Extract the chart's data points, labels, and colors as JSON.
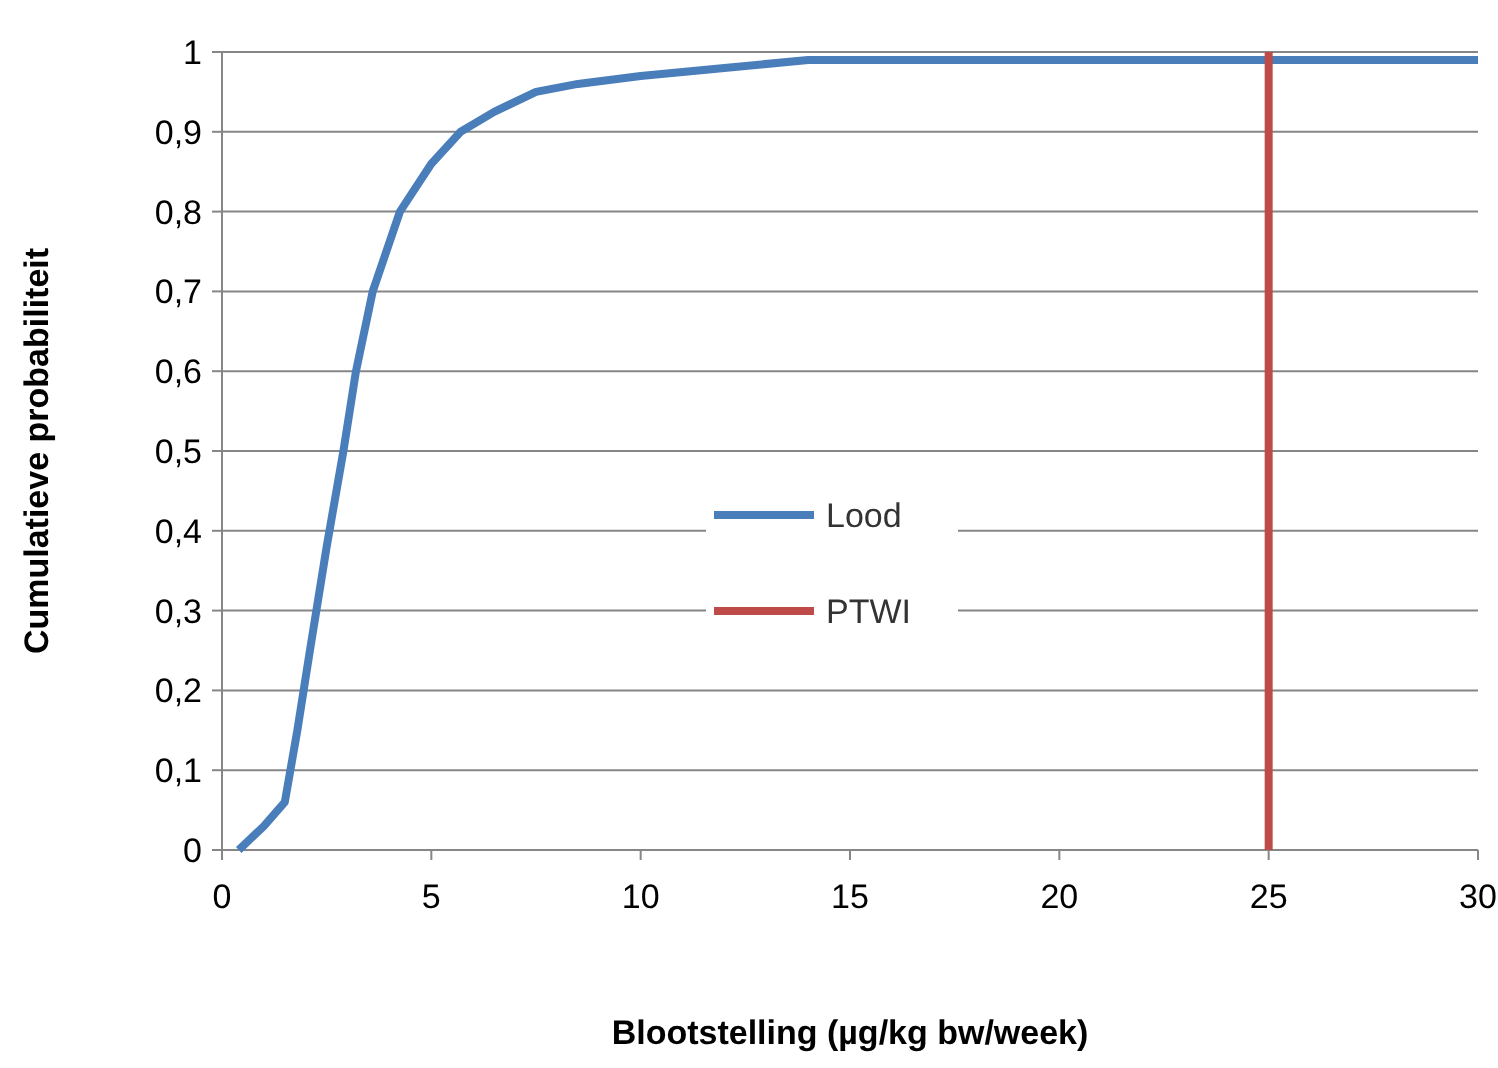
{
  "chart_data": {
    "type": "line",
    "xlabel": "Blootstelling (µg/kg bw/week)",
    "ylabel": "Cumulatieve probabiliteit",
    "xlim": [
      0,
      30
    ],
    "xticks": [
      0,
      5,
      10,
      15,
      20,
      25,
      30
    ],
    "ylim": [
      0,
      1
    ],
    "yticks": [
      0,
      {
        "value": 0.1,
        "label": "0,1"
      },
      {
        "value": 0.2,
        "label": "0,2"
      },
      {
        "value": 0.3,
        "label": "0,3"
      },
      {
        "value": 0.4,
        "label": "0,4"
      },
      {
        "value": 0.5,
        "label": "0,5"
      },
      {
        "value": 0.6,
        "label": "0,6"
      },
      {
        "value": 0.7,
        "label": "0,7"
      },
      {
        "value": 0.8,
        "label": "0,8"
      },
      {
        "value": 0.9,
        "label": "0,9"
      },
      1
    ],
    "grid": "y",
    "legend": "center",
    "marker": "none",
    "line_style": "solid",
    "series": [
      {
        "name": "Lood",
        "color": "#4a7ebb",
        "x": [
          0.4,
          1.0,
          1.5,
          1.8,
          2.1,
          2.5,
          2.9,
          3.2,
          3.6,
          4.25,
          5.0,
          5.7,
          6.5,
          7.5,
          8.5,
          10,
          12,
          14,
          20,
          30
        ],
        "values": [
          0,
          0.03,
          0.06,
          0.15,
          0.25,
          0.38,
          0.5,
          0.6,
          0.7,
          0.8,
          0.86,
          0.9,
          0.925,
          0.95,
          0.96,
          0.97,
          0.98,
          0.99,
          0.99,
          0.99
        ]
      },
      {
        "name": "PTWI",
        "color": "#be4b48",
        "x": [
          25,
          25
        ],
        "values": [
          0,
          1
        ]
      }
    ]
  }
}
